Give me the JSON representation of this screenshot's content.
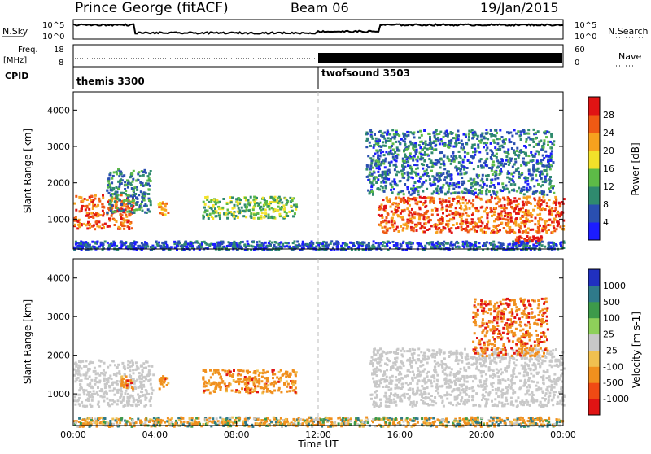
{
  "header": {
    "station": "Prince George (fitACF)",
    "beam": "Beam 06",
    "date": "19/Jan/2015"
  },
  "top_panels": {
    "nsky_label": "N.Sky",
    "nsky_ticks": [
      "10^5",
      "10^0"
    ],
    "nsearch_label": "N.Search",
    "nsearch_ticks": [
      "10^5",
      "10^0"
    ],
    "freq_label_lines": [
      "Freq.",
      "[MHz]"
    ],
    "freq_ticks": [
      "18",
      "8"
    ],
    "nave_label": "Nave",
    "nave_ticks": [
      "60",
      "0"
    ],
    "cpid_label": "CPID",
    "cpid_segments": [
      {
        "name": "themis 3300",
        "start_hour": 0
      },
      {
        "name": "twofsound 3503",
        "start_hour": 12
      }
    ]
  },
  "chart_data": [
    {
      "type": "heatmap",
      "title": "",
      "parameter": "Power",
      "ylabel": "Slant Range [km]",
      "xlabel": "",
      "xlim": [
        0,
        24
      ],
      "ylim": [
        180,
        4500
      ],
      "yticks": [
        1000,
        2000,
        3000,
        4000
      ],
      "colorbar": {
        "label": "Power [dB]",
        "ticks": [
          "28",
          "24",
          "20",
          "16",
          "12",
          "8",
          "4"
        ],
        "range": [
          0,
          32
        ],
        "colors": [
          "#1c1cff",
          "#2a4fb0",
          "#2f8a6e",
          "#5dbb47",
          "#f2e12a",
          "#f7a21e",
          "#ef5a14",
          "#e01414"
        ]
      },
      "echo_regions": [
        {
          "label": "pre-04 main band",
          "t": [
            0.0,
            2.9
          ],
          "range_km": [
            750,
            1700
          ],
          "level": 26
        },
        {
          "label": "pre-04 upper streak",
          "t": [
            1.6,
            3.8
          ],
          "range_km": [
            1200,
            2400
          ],
          "level": 10
        },
        {
          "label": "04:00 patch",
          "t": [
            4.1,
            4.6
          ],
          "range_km": [
            1150,
            1500
          ],
          "level": 22
        },
        {
          "label": "07-11 patch",
          "t": [
            6.3,
            10.9
          ],
          "range_km": [
            1050,
            1650
          ],
          "level": 14
        },
        {
          "label": "16-24 main band",
          "t": [
            14.9,
            24.0
          ],
          "range_km": [
            650,
            1650
          ],
          "level": 26
        },
        {
          "label": "15-24 upper scatter",
          "t": [
            14.3,
            23.5
          ],
          "range_km": [
            1700,
            3500
          ],
          "level": 8
        },
        {
          "label": "22:30 low echo",
          "t": [
            21.6,
            22.9
          ],
          "range_km": [
            380,
            560
          ],
          "level": 30
        },
        {
          "label": "near range",
          "t": [
            0.0,
            24.0
          ],
          "range_km": [
            180,
            420
          ],
          "level": 6
        }
      ]
    },
    {
      "type": "heatmap",
      "title": "",
      "parameter": "Velocity",
      "ylabel": "Slant Range [km]",
      "xlabel": "Time UT",
      "xlim": [
        0,
        24
      ],
      "ylim": [
        180,
        4500
      ],
      "yticks": [
        1000,
        2000,
        3000,
        4000
      ],
      "xticks": [
        "00:00",
        "04:00",
        "08:00",
        "12:00",
        "16:00",
        "20:00",
        "00:00"
      ],
      "colorbar": {
        "label": "Velocity [m s-1]",
        "ticks": [
          "1000",
          "500",
          "100",
          "25",
          "-25",
          "-100",
          "-500",
          "-1000"
        ],
        "colors": [
          "#2030c0",
          "#2f7a8a",
          "#3d9a4a",
          "#8ed05a",
          "#c8c8c8",
          "#f0c050",
          "#f0901e",
          "#f04a14",
          "#e01414"
        ]
      },
      "echo_regions": [
        {
          "label": "ground scatter 00-04",
          "t": [
            0.0,
            3.9
          ],
          "range_km": [
            700,
            1900
          ],
          "class": "ground",
          "velocity": 0
        },
        {
          "label": "02:30 echo",
          "t": [
            2.3,
            2.9
          ],
          "range_km": [
            1150,
            1500
          ],
          "velocity": -300
        },
        {
          "label": "04:00 echo",
          "t": [
            4.1,
            4.6
          ],
          "range_km": [
            1150,
            1500
          ],
          "velocity": -300
        },
        {
          "label": "07-11 echo",
          "t": [
            6.3,
            10.9
          ],
          "range_km": [
            1050,
            1650
          ],
          "velocity": -300
        },
        {
          "label": "ground scatter 14-24",
          "t": [
            14.5,
            24.0
          ],
          "range_km": [
            700,
            2200
          ],
          "class": "ground",
          "velocity": 0
        },
        {
          "label": "20-23 upper echoes",
          "t": [
            19.5,
            23.2
          ],
          "range_km": [
            2000,
            3500
          ],
          "velocity": -400
        },
        {
          "label": "near range",
          "t": [
            0.0,
            24.0
          ],
          "range_km": [
            180,
            420
          ],
          "velocity": -50
        }
      ]
    }
  ]
}
